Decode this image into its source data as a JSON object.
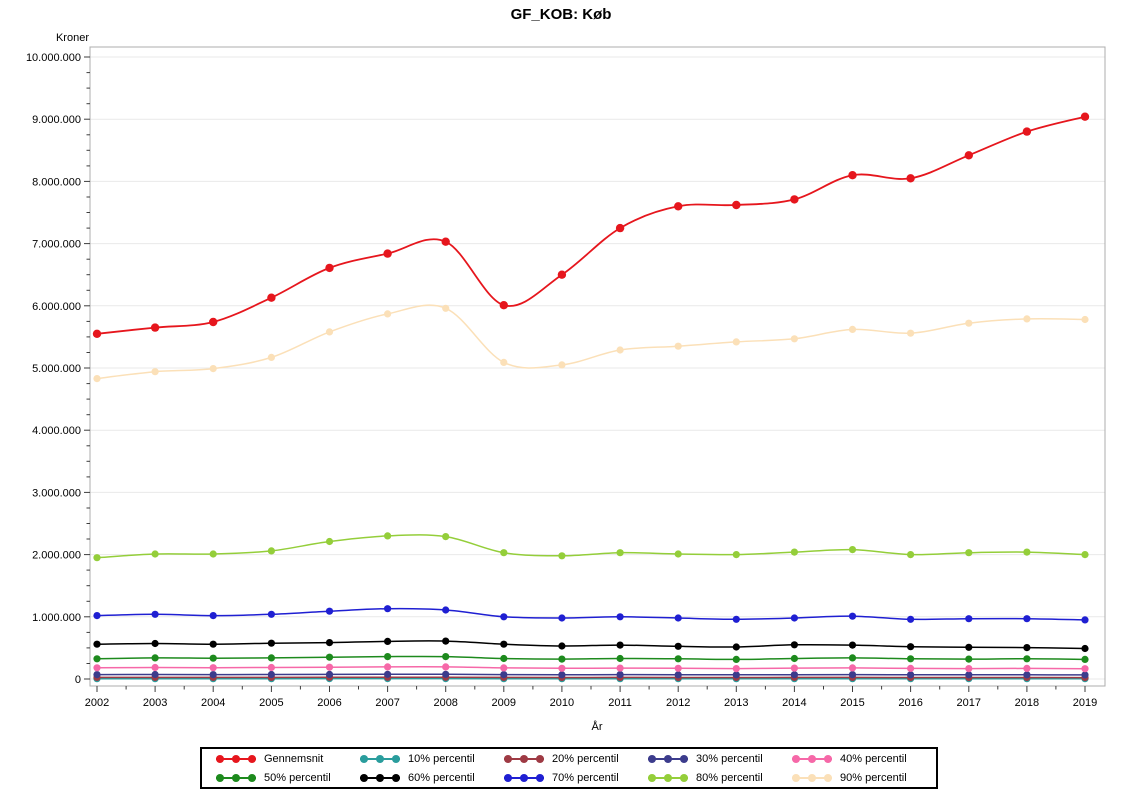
{
  "title": "GF_KOB: Køb",
  "chart_data": {
    "type": "line",
    "title": "GF_KOB: Køb",
    "xlabel": "År",
    "ylabel": "Kroner",
    "ylim": [
      0,
      10000000
    ],
    "ytick_interval": 1000000,
    "ytick_minor_interval": 250000,
    "ytick_labels": [
      "0",
      "1.000.000",
      "2.000.000",
      "3.000.000",
      "4.000.000",
      "5.000.000",
      "6.000.000",
      "7.000.000",
      "8.000.000",
      "9.000.000",
      "10.000.000"
    ],
    "grid": "horizontal",
    "grid_color": "#e9e9e9",
    "frame_color": "#adadad",
    "tick_color": "#3c3c3c",
    "legend_position": "bottom",
    "x": [
      2002,
      2003,
      2004,
      2005,
      2006,
      2007,
      2008,
      2009,
      2010,
      2011,
      2012,
      2013,
      2014,
      2015,
      2016,
      2017,
      2018,
      2019
    ],
    "series": [
      {
        "name": "Gennemsnit",
        "color": "#e6161d",
        "values": [
          5550000,
          5650000,
          5740000,
          6130000,
          6610000,
          6840000,
          7030000,
          6010000,
          6500000,
          7250000,
          7600000,
          7620000,
          7710000,
          8100000,
          8050000,
          8420000,
          8800000,
          9040000
        ]
      },
      {
        "name": "10% percentil",
        "color": "#2a9d9d",
        "values": [
          5000,
          5000,
          5000,
          5000,
          6000,
          6000,
          6000,
          5000,
          5000,
          5000,
          5000,
          5000,
          5000,
          5000,
          5000,
          5000,
          5000,
          5000
        ]
      },
      {
        "name": "20% percentil",
        "color": "#9e3a44",
        "values": [
          25000,
          26000,
          26000,
          26000,
          27000,
          28000,
          28000,
          25000,
          24000,
          25000,
          24000,
          24000,
          25000,
          25000,
          24000,
          24000,
          24000,
          23000
        ]
      },
      {
        "name": "30% percentil",
        "color": "#3c3c8c",
        "values": [
          70000,
          72000,
          71000,
          72000,
          74000,
          76000,
          76000,
          70000,
          68000,
          70000,
          68000,
          67000,
          69000,
          70000,
          68000,
          67000,
          68000,
          66000
        ]
      },
      {
        "name": "40% percentil",
        "color": "#f668a8",
        "values": [
          180000,
          185000,
          182000,
          185000,
          190000,
          195000,
          195000,
          178000,
          172000,
          175000,
          172000,
          168000,
          175000,
          178000,
          170000,
          168000,
          170000,
          165000
        ]
      },
      {
        "name": "50% percentil",
        "color": "#1d8a1d",
        "values": [
          325000,
          340000,
          335000,
          340000,
          350000,
          360000,
          360000,
          330000,
          320000,
          330000,
          325000,
          315000,
          330000,
          340000,
          325000,
          320000,
          325000,
          315000
        ]
      },
      {
        "name": "60% percentil",
        "color": "#000000",
        "values": [
          560000,
          570000,
          560000,
          575000,
          585000,
          605000,
          610000,
          560000,
          530000,
          545000,
          525000,
          515000,
          550000,
          545000,
          520000,
          510000,
          505000,
          490000
        ]
      },
      {
        "name": "70% percentil",
        "color": "#1f1fd2",
        "values": [
          1020000,
          1040000,
          1020000,
          1040000,
          1090000,
          1130000,
          1110000,
          1000000,
          980000,
          1000000,
          980000,
          960000,
          980000,
          1010000,
          960000,
          970000,
          970000,
          950000
        ]
      },
      {
        "name": "80% percentil",
        "color": "#94ce3a",
        "values": [
          1950000,
          2010000,
          2010000,
          2060000,
          2210000,
          2300000,
          2290000,
          2030000,
          1980000,
          2030000,
          2010000,
          2000000,
          2040000,
          2080000,
          2000000,
          2030000,
          2040000,
          2000000
        ]
      },
      {
        "name": "90% percentil",
        "color": "#fbe0b8",
        "values": [
          4830000,
          4940000,
          4990000,
          5170000,
          5580000,
          5870000,
          5960000,
          5090000,
          5050000,
          5290000,
          5350000,
          5420000,
          5470000,
          5620000,
          5560000,
          5720000,
          5790000,
          5780000
        ]
      }
    ]
  }
}
